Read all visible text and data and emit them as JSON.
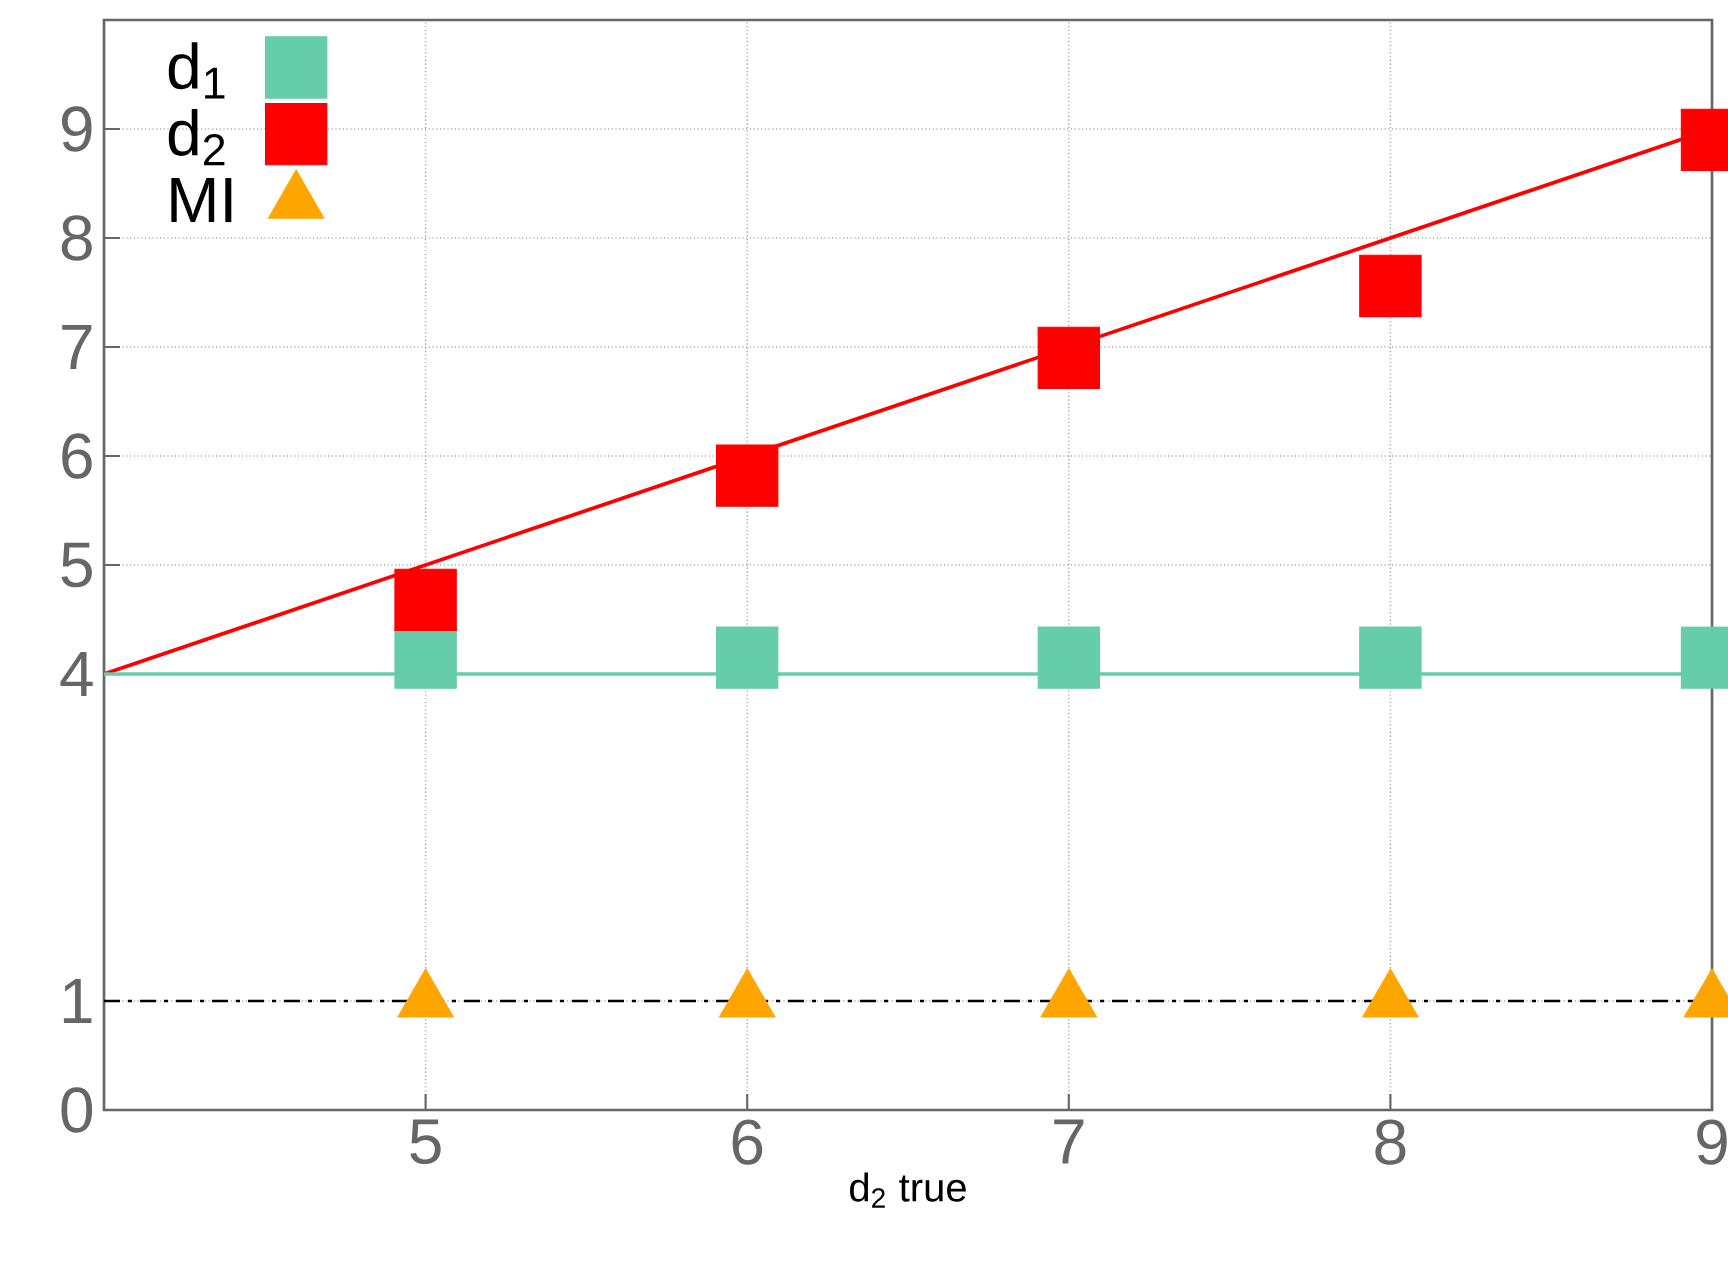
{
  "chart_data": {
    "type": "scatter",
    "xlabel": "d$_{2}$ true",
    "xlim": [
      4,
      9
    ],
    "ylim": [
      0,
      10
    ],
    "xticks": [
      5,
      6,
      7,
      8,
      9
    ],
    "yticks": [
      0,
      1,
      4,
      5,
      6,
      7,
      8,
      9
    ],
    "grid": true,
    "legend": "top left",
    "series": [
      {
        "name": "d$_{1}$",
        "marker": "square",
        "color": "#66cdaa",
        "x": [
          5,
          6,
          7,
          8,
          9
        ],
        "values": [
          4.15,
          4.15,
          4.15,
          4.15,
          4.15
        ]
      },
      {
        "name": "d$_{2}$",
        "marker": "square",
        "color": "#ff0000",
        "x": [
          5,
          6,
          7,
          8,
          9
        ],
        "values": [
          4.68,
          5.82,
          6.9,
          7.56,
          8.9
        ]
      },
      {
        "name": "MI",
        "marker": "triangle",
        "color": "#ffa500",
        "x": [
          5,
          6,
          7,
          8,
          9
        ],
        "values": [
          1,
          1,
          1,
          1,
          1
        ]
      },
      {
        "type": "line",
        "marker": "none",
        "color": "#ff0000",
        "x": [
          4,
          9
        ],
        "values": [
          4,
          9
        ]
      },
      {
        "type": "line",
        "marker": "none",
        "color": "#66cdaa",
        "x": [
          4,
          9
        ],
        "values": [
          4,
          4
        ]
      }
    ],
    "ref_lines": [
      {
        "axis": "y",
        "value": 1,
        "color": "#000000",
        "line_style": "dashdot"
      }
    ]
  }
}
